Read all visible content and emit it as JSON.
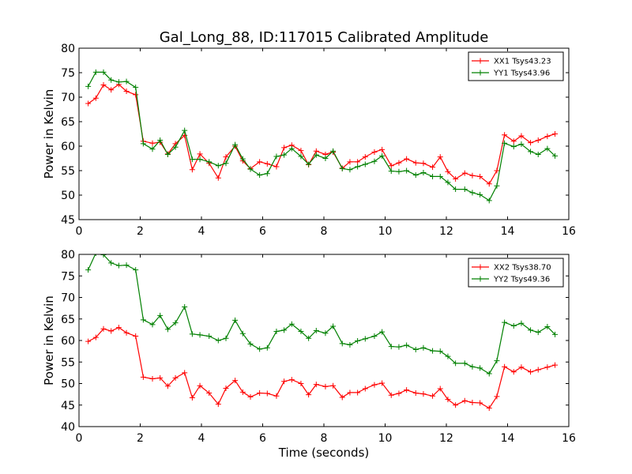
{
  "figure": {
    "title": "Gal_Long_88, ID:117015 Calibrated Amplitude",
    "xlabel": "Time (seconds)"
  },
  "chart_data": [
    {
      "type": "line",
      "ylabel": "Power in Kelvin",
      "xlim": [
        0,
        16
      ],
      "ylim": [
        45,
        80
      ],
      "xticks": [
        "0",
        "2",
        "4",
        "6",
        "8",
        "10",
        "12",
        "14",
        "16"
      ],
      "yticks": [
        "45",
        "50",
        "55",
        "60",
        "65",
        "70",
        "75",
        "80"
      ],
      "legend_position": "top-right",
      "x": [
        0.3,
        0.55,
        0.8,
        1.05,
        1.3,
        1.55,
        1.85,
        2.1,
        2.4,
        2.65,
        2.9,
        3.15,
        3.45,
        3.7,
        3.95,
        4.25,
        4.55,
        4.8,
        5.1,
        5.35,
        5.6,
        5.9,
        6.15,
        6.45,
        6.7,
        6.95,
        7.25,
        7.5,
        7.75,
        8.05,
        8.3,
        8.6,
        8.85,
        9.1,
        9.35,
        9.65,
        9.9,
        10.2,
        10.45,
        10.7,
        11.0,
        11.25,
        11.55,
        11.8,
        12.05,
        12.3,
        12.6,
        12.85,
        13.1,
        13.4,
        13.65,
        13.9,
        14.2,
        14.45,
        14.75,
        15.0,
        15.3,
        15.55
      ],
      "series": [
        {
          "name": "XX1 Tsys43.23",
          "color": "#ff0000",
          "values": [
            68.7,
            69.8,
            72.5,
            71.5,
            72.6,
            71.2,
            70.5,
            61.0,
            60.6,
            60.8,
            58.4,
            60.5,
            62.2,
            55.2,
            58.4,
            56.5,
            53.5,
            57.8,
            60.0,
            57.0,
            55.4,
            56.8,
            56.4,
            55.8,
            59.7,
            60.2,
            59.1,
            56.2,
            59.0,
            58.3,
            58.8,
            55.5,
            56.8,
            56.8,
            57.8,
            58.8,
            59.3,
            56.0,
            56.6,
            57.4,
            56.6,
            56.5,
            55.7,
            57.8,
            54.8,
            53.3,
            54.5,
            54.0,
            53.8,
            52.3,
            55.0,
            62.3,
            61.0,
            62.1,
            60.7,
            61.2,
            62.0,
            62.5
          ]
        },
        {
          "name": "YY1 Tsys43.96",
          "color": "#008000",
          "values": [
            72.2,
            75.1,
            75.1,
            73.5,
            73.1,
            73.2,
            72.0,
            60.5,
            59.4,
            61.2,
            58.3,
            59.8,
            63.2,
            57.3,
            57.3,
            56.8,
            56.0,
            56.5,
            60.3,
            57.4,
            55.3,
            54.1,
            54.4,
            57.9,
            58.2,
            59.5,
            57.9,
            56.3,
            58.2,
            57.5,
            59.0,
            55.4,
            55.2,
            55.8,
            56.3,
            56.9,
            58.0,
            54.9,
            54.8,
            55.0,
            54.1,
            54.6,
            53.8,
            53.8,
            52.6,
            51.2,
            51.2,
            50.5,
            50.1,
            48.9,
            51.9,
            60.6,
            59.9,
            60.4,
            58.9,
            58.3,
            59.5,
            58.0
          ]
        }
      ]
    },
    {
      "type": "line",
      "ylabel": "Power in Kelvin",
      "xlim": [
        0,
        16
      ],
      "ylim": [
        40,
        80
      ],
      "xticks": [
        "0",
        "2",
        "4",
        "6",
        "8",
        "10",
        "12",
        "14",
        "16"
      ],
      "yticks": [
        "40",
        "45",
        "50",
        "55",
        "60",
        "65",
        "70",
        "75",
        "80"
      ],
      "legend_position": "top-right",
      "x": [
        0.3,
        0.55,
        0.8,
        1.05,
        1.3,
        1.55,
        1.85,
        2.1,
        2.4,
        2.65,
        2.9,
        3.15,
        3.45,
        3.7,
        3.95,
        4.25,
        4.55,
        4.8,
        5.1,
        5.35,
        5.6,
        5.9,
        6.15,
        6.45,
        6.7,
        6.95,
        7.25,
        7.5,
        7.75,
        8.05,
        8.3,
        8.6,
        8.85,
        9.1,
        9.35,
        9.65,
        9.9,
        10.2,
        10.45,
        10.7,
        11.0,
        11.25,
        11.55,
        11.8,
        12.05,
        12.3,
        12.6,
        12.85,
        13.1,
        13.4,
        13.65,
        13.9,
        14.2,
        14.45,
        14.75,
        15.0,
        15.3,
        15.55
      ],
      "series": [
        {
          "name": "XX2 Tsys38.70",
          "color": "#ff0000",
          "values": [
            59.8,
            60.7,
            62.7,
            62.2,
            63.0,
            61.8,
            61.0,
            51.5,
            51.1,
            51.3,
            49.4,
            51.3,
            52.5,
            46.7,
            49.5,
            47.8,
            45.2,
            48.9,
            50.7,
            48.0,
            46.9,
            47.8,
            47.7,
            47.1,
            50.5,
            50.9,
            50.0,
            47.4,
            49.8,
            49.3,
            49.5,
            46.8,
            47.9,
            47.9,
            48.8,
            49.7,
            50.1,
            47.3,
            47.7,
            48.5,
            47.8,
            47.6,
            47.1,
            48.8,
            46.3,
            45.0,
            46.0,
            45.6,
            45.5,
            44.3,
            47.0,
            53.9,
            52.7,
            53.8,
            52.7,
            53.2,
            53.8,
            54.3
          ]
        },
        {
          "name": "YY2 Tsys49.36",
          "color": "#008000",
          "values": [
            76.4,
            80.3,
            79.9,
            78.0,
            77.4,
            77.5,
            76.4,
            64.8,
            63.7,
            65.8,
            62.6,
            64.1,
            67.8,
            61.5,
            61.3,
            61.0,
            60.0,
            60.5,
            64.7,
            61.6,
            59.2,
            58.0,
            58.3,
            62.1,
            62.4,
            63.8,
            62.1,
            60.5,
            62.3,
            61.7,
            63.3,
            59.3,
            59.0,
            59.9,
            60.4,
            61.0,
            62.0,
            58.6,
            58.5,
            58.9,
            57.9,
            58.3,
            57.6,
            57.5,
            56.3,
            54.7,
            54.7,
            53.9,
            53.6,
            52.3,
            55.3,
            64.2,
            63.4,
            64.0,
            62.4,
            61.9,
            63.2,
            61.4
          ]
        }
      ]
    }
  ]
}
